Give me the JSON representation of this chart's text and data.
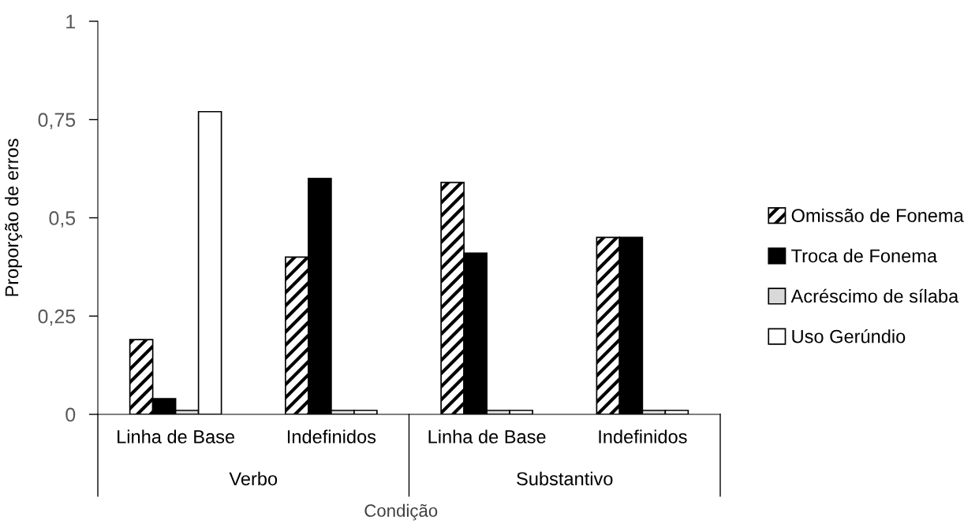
{
  "chart_data": {
    "type": "bar",
    "xlabel": "Condição",
    "ylabel": "Proporção de erros",
    "categories": [
      "Linha de Base",
      "Indefinidos",
      "Linha de Base",
      "Indefinidos"
    ],
    "series": [
      {
        "name": "Omissão de Fonema",
        "color": "#000000",
        "values": [
          0.19,
          0.4,
          0.59,
          0.45
        ]
      },
      {
        "name": "Troca de Fonema",
        "color": "#000000",
        "values": [
          0.04,
          0.6,
          0.41,
          0.45
        ]
      },
      {
        "name": "Acréscimo de sílaba",
        "color": "#d9d9d9",
        "values": [
          0.01,
          0.01,
          0.01,
          0.01
        ]
      },
      {
        "name": "Uso Gerúndio",
        "color": "#ffffff",
        "values": [
          0.77,
          0.01,
          0.01,
          0.01
        ]
      }
    ],
    "ylim": [
      0,
      1
    ],
    "yticks": [
      0,
      {
        "value": 0.25,
        "label": "0,25"
      },
      {
        "value": 0.5,
        "label": "0,5"
      },
      {
        "value": 0.75,
        "label": "0,75"
      },
      1
    ],
    "legend": "right",
    "grid": false,
    "annotations": [
      "Verbo",
      "Substantivo"
    ]
  }
}
